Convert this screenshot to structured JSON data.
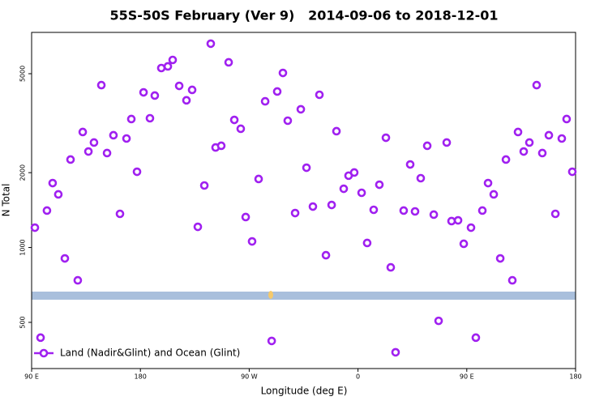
{
  "chart_data": {
    "type": "scatter",
    "title": "55S-50S February (Ver 9)   2014-09-06 to 2018-12-01",
    "x_label": "Longitude (deg E)",
    "y_label": "N Total",
    "xlim": [
      90,
      540
    ],
    "xticks": [
      {
        "value": 90,
        "label": "90 E"
      },
      180,
      {
        "value": 270,
        "label": "90 W"
      },
      {
        "value": 360,
        "label": "0"
      },
      {
        "value": 450,
        "label": "90 E"
      },
      {
        "value": 540,
        "label": "180"
      }
    ],
    "ylim": [
      326,
      7330
    ],
    "yticks": [
      500,
      1000,
      2000,
      5000
    ],
    "y_log": true,
    "grid": false,
    "legend": "lower left",
    "series": [
      {
        "name": "Land (Nadir&Glint) and Ocean (Glint)",
        "color": "#a020f0",
        "x": [
          92.7,
          97.4,
          102.7,
          107.4,
          112.1,
          117.5,
          122.2,
          128.2,
          132.3,
          137,
          141.6,
          147.7,
          152.4,
          157.7,
          163.1,
          168.5,
          172.5,
          177.2,
          182.6,
          187.9,
          191.9,
          197.3,
          202.7,
          206.7,
          212.1,
          218.1,
          222.8,
          227.5,
          232.9,
          238.2,
          242.2,
          246.9,
          253,
          257.7,
          263,
          267.1,
          272.4,
          277.8,
          283.2,
          288.6,
          293.2,
          297.9,
          301.9,
          308,
          312.7,
          317.4,
          322.7,
          328.1,
          333.5,
          338.2,
          342.2,
          348.2,
          352.2,
          356.9,
          363,
          367.6,
          373,
          377.7,
          383.1,
          387.1,
          391.1,
          397.8,
          403.2,
          407.2,
          411.9,
          417.3,
          422.7,
          426.7,
          433.4,
          437.4,
          442.8,
          447.5,
          453.5,
          457.5,
          462.9,
          467.6,
          472.3,
          477.7,
          482.4,
          487.7,
          492.4,
          497.1,
          501.8,
          507.8,
          512.5,
          517.9,
          523.3,
          528.6,
          532.6,
          537.3
        ],
        "values": [
          1202,
          434,
          1408,
          1816,
          1636,
          904,
          2258,
          738,
          2914,
          2433,
          2644,
          4499,
          2398,
          2828,
          1366,
          2744,
          3286,
          2017,
          4207,
          3310,
          4084,
          5270,
          5350,
          5680,
          4467,
          3908,
          4304,
          1211,
          1776,
          6604,
          2525,
          2565,
          5555,
          3260,
          3003,
          1326,
          1058,
          1886,
          3872,
          421,
          4240,
          5037,
          3236,
          1376,
          3597,
          2094,
          1461,
          4114,
          931,
          1483,
          2936,
          1723,
          1945,
          2003,
          1660,
          1043,
          1418,
          1789,
          2764,
          832,
          379,
          1408,
          2158,
          1397,
          1900,
          2565,
          1356,
          507,
          2644,
          1277,
          1286,
          1035,
          1202,
          434,
          1408,
          1816,
          1636,
          904,
          2258,
          738,
          2914,
          2433,
          2644,
          4499,
          2398,
          2828,
          1366,
          2744,
          3286,
          2017
        ]
      }
    ]
  }
}
